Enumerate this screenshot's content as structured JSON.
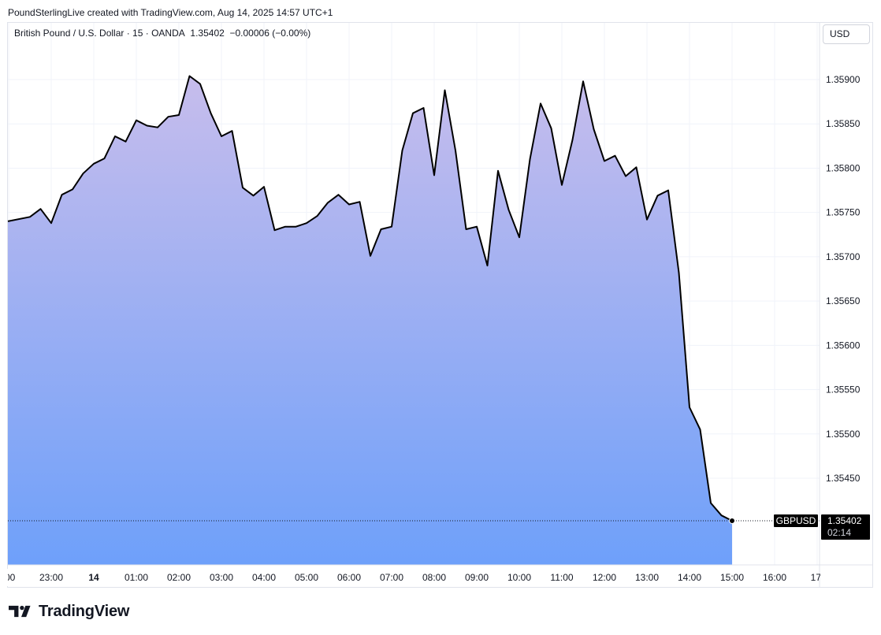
{
  "header": {
    "attribution": "PoundSterlingLive created with TradingView.com, Aug 14, 2025 14:57 UTC+1"
  },
  "legend": {
    "symbol_desc": "British Pound / U.S. Dollar · 15 · OANDA",
    "last": "1.35402",
    "change": "−0.00006 (−0.00%)"
  },
  "currency_button": "USD",
  "price_tag": {
    "symbol": "GBPUSD",
    "price": "1.35402",
    "countdown": "02:14"
  },
  "logo_text": "TradingView",
  "colors": {
    "line": "#000000",
    "fill_top": "#c7bdec",
    "fill_bottom": "#6ea0fa",
    "grid": "#f0f3fa",
    "tag_bg": "#000000"
  },
  "chart_data": {
    "type": "area",
    "y_ticks": [
      "1.35450",
      "1.35500",
      "1.35550",
      "1.35600",
      "1.35650",
      "1.35700",
      "1.35750",
      "1.35800",
      "1.35850",
      "1.35900"
    ],
    "x_ticks": [
      {
        "label": ":00",
        "t": -1
      },
      {
        "label": "23:00",
        "t": 0
      },
      {
        "label": "14",
        "t": 1,
        "bold": true
      },
      {
        "label": "01:00",
        "t": 2
      },
      {
        "label": "02:00",
        "t": 3
      },
      {
        "label": "03:00",
        "t": 4
      },
      {
        "label": "04:00",
        "t": 5
      },
      {
        "label": "05:00",
        "t": 6
      },
      {
        "label": "06:00",
        "t": 7
      },
      {
        "label": "07:00",
        "t": 8
      },
      {
        "label": "08:00",
        "t": 9
      },
      {
        "label": "09:00",
        "t": 10
      },
      {
        "label": "10:00",
        "t": 11
      },
      {
        "label": "11:00",
        "t": 12
      },
      {
        "label": "12:00",
        "t": 13
      },
      {
        "label": "13:00",
        "t": 14
      },
      {
        "label": "14:00",
        "t": 15
      },
      {
        "label": "15:00",
        "t": 16
      },
      {
        "label": "16:00",
        "t": 17
      },
      {
        "label": "17:",
        "t": 18
      }
    ],
    "ylim": [
      1.3535,
      1.3598
    ],
    "interval": "15",
    "start_time": "22:15",
    "values": [
      1.3574,
      1.35745,
      1.35754,
      1.35738,
      1.3577,
      1.35776,
      1.35794,
      1.35805,
      1.35811,
      1.35836,
      1.3583,
      1.35854,
      1.35848,
      1.35846,
      1.35858,
      1.3586,
      1.35904,
      1.35895,
      1.35862,
      1.35836,
      1.35842,
      1.35778,
      1.35769,
      1.35779,
      1.3573,
      1.35734,
      1.35734,
      1.35738,
      1.35746,
      1.35761,
      1.3577,
      1.35759,
      1.35762,
      1.35701,
      1.35731,
      1.35734,
      1.3582,
      1.35862,
      1.35868,
      1.35792,
      1.35888,
      1.3582,
      1.35731,
      1.35734,
      1.3569,
      1.35797,
      1.35753,
      1.35722,
      1.3581,
      1.35873,
      1.35845,
      1.35781,
      1.35832,
      1.35898,
      1.35844,
      1.35808,
      1.35814,
      1.35791,
      1.35801,
      1.35742,
      1.35769,
      1.35775,
      1.35682,
      1.3553,
      1.35505,
      1.35422,
      1.35408,
      1.35402
    ]
  }
}
